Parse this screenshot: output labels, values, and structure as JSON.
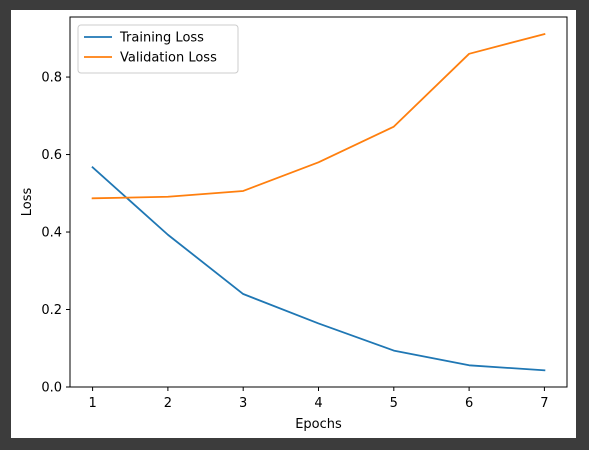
{
  "chart_data": {
    "type": "line",
    "title": "",
    "xlabel": "Epochs",
    "ylabel": "Loss",
    "x": [
      1,
      2,
      3,
      4,
      5,
      6,
      7
    ],
    "xticks": [
      "1",
      "2",
      "3",
      "4",
      "5",
      "6",
      "7"
    ],
    "yticks": [
      "0.0",
      "0.2",
      "0.4",
      "0.6",
      "0.8"
    ],
    "ylim": [
      0.0,
      0.955
    ],
    "xlim": [
      0.7,
      7.3
    ],
    "grid": false,
    "legend_position": "top-left",
    "series": [
      {
        "name": "Training Loss",
        "color": "#1f77b4",
        "values": [
          0.567,
          0.393,
          0.24,
          0.164,
          0.094,
          0.056,
          0.043
        ]
      },
      {
        "name": "Validation Loss",
        "color": "#ff7f0e",
        "values": [
          0.487,
          0.491,
          0.506,
          0.58,
          0.672,
          0.86,
          0.911
        ]
      }
    ]
  }
}
